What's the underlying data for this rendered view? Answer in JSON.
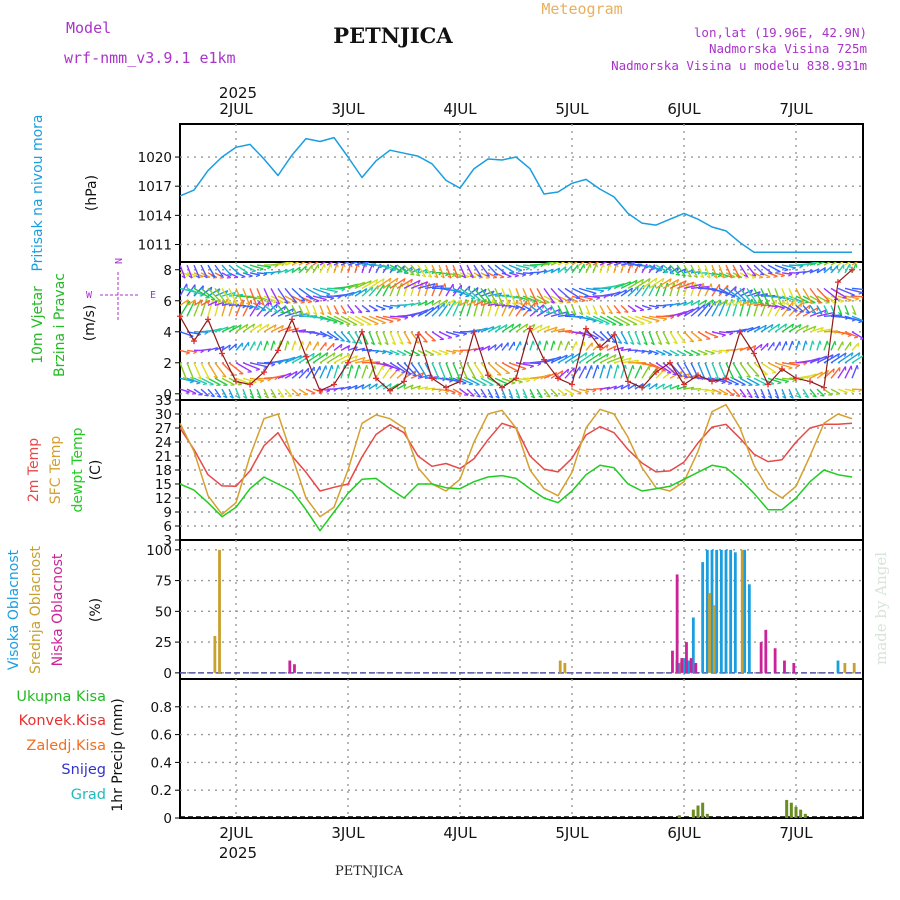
{
  "header": {
    "model_label": "Model",
    "model_name": "wrf-nmm_v3.9.1 e1km",
    "station": "PETNJICA",
    "product": "Meteogram",
    "coords": "lon,lat (19.96E, 42.9N)",
    "elevation": "Nadmorska Visina 725m",
    "model_elevation": "Nadmorska Visina u modelu 838.931m",
    "watermark": "made by Angel",
    "footer_station": "PETNJICA"
  },
  "time_axis": {
    "year_label": "2025",
    "day_labels": [
      "2JUL",
      "3JUL",
      "4JUL",
      "5JUL",
      "6JUL",
      "7JUL"
    ],
    "start": "2025-07-01T12:00",
    "end": "2025-07-07T12:00"
  },
  "colors": {
    "pressure": "#1a9ee0",
    "wind_axis": "#22bb22",
    "wind_arrow_labels": "#aa33cc",
    "temp_2m": "#e84848",
    "temp_sfc": "#d4a030",
    "temp_dew": "#22cc22",
    "cloud_high": "#1a9ee0",
    "cloud_mid": "#c8a030",
    "cloud_low": "#cc2299",
    "precip_total": "#22bb22",
    "precip_conv": "#e83030",
    "precip_frz": "#f07020",
    "precip_snow": "#3333cc",
    "precip_hail": "#22bbbb",
    "header_model": "#aa33cc",
    "header_product": "#e8b060"
  },
  "chart_data": [
    {
      "type": "line",
      "panel": "pressure",
      "ylabel_lines": [
        "Pritisak na nivou mora"
      ],
      "unit": "(hPa)",
      "ylim": [
        1009.2,
        1023.4
      ],
      "yticks": [
        1011,
        1014,
        1017,
        1020
      ],
      "series": [
        {
          "x_hours": [
            0,
            3,
            6,
            9,
            12,
            15,
            18,
            21,
            24,
            27,
            30,
            33,
            36,
            39,
            42,
            45,
            48,
            51,
            54,
            57,
            60,
            63,
            66,
            69,
            72,
            75,
            78,
            81,
            84,
            87,
            90,
            93,
            96,
            99,
            102,
            105,
            108,
            111,
            114,
            117,
            120,
            123,
            126,
            129,
            132,
            135,
            138,
            141,
            144
          ],
          "values": [
            1016.0,
            1016.6,
            1018.6,
            1020.0,
            1021.0,
            1021.3,
            1019.8,
            1018.1,
            1020.2,
            1021.9,
            1021.6,
            1022.0,
            1020.0,
            1017.9,
            1019.6,
            1020.7,
            1020.4,
            1020.1,
            1019.3,
            1017.6,
            1016.8,
            1018.8,
            1019.8,
            1019.7,
            1020.0,
            1018.8,
            1016.2,
            1016.4,
            1017.3,
            1017.7,
            1016.7,
            1015.9,
            1014.2,
            1013.2,
            1013.0,
            1013.6,
            1014.2,
            1013.6,
            1012.8,
            1012.4,
            1011.2,
            1010.2,
            1010.2,
            1010.2,
            1010.2,
            1010.2,
            1010.2,
            1010.2,
            1010.2
          ]
        }
      ]
    },
    {
      "type": "scatter",
      "panel": "wind",
      "ylabel_lines": [
        "10m Vjetar",
        "Brzina i Pravac"
      ],
      "unit": "(m/s)",
      "ylim": [
        -0.4,
        8.5
      ],
      "yticks": [
        0,
        2,
        4,
        6,
        8
      ],
      "direction_key": [
        "N",
        "W",
        "E"
      ],
      "series": [
        {
          "name": "speed",
          "x_hours": [
            0,
            3,
            6,
            9,
            12,
            15,
            18,
            21,
            24,
            27,
            30,
            33,
            36,
            39,
            42,
            45,
            48,
            51,
            54,
            57,
            60,
            63,
            66,
            69,
            72,
            75,
            78,
            81,
            84,
            87,
            90,
            93,
            96,
            99,
            102,
            105,
            108,
            111,
            114,
            117,
            120,
            123,
            126,
            129,
            132,
            135,
            138,
            141,
            144
          ],
          "values": [
            5.0,
            3.4,
            4.8,
            2.6,
            0.8,
            0.6,
            1.4,
            2.8,
            4.8,
            2.4,
            0.2,
            0.6,
            2.0,
            4.0,
            1.0,
            0.2,
            0.8,
            3.8,
            1.0,
            0.4,
            0.8,
            4.0,
            1.2,
            0.4,
            1.0,
            4.2,
            2.2,
            1.0,
            0.6,
            4.2,
            3.0,
            3.8,
            0.8,
            0.4,
            1.4,
            2.0,
            0.6,
            1.2,
            0.8,
            1.0,
            4.0,
            2.6,
            0.6,
            1.6,
            1.0,
            0.8,
            0.4,
            7.2,
            8.0
          ]
        }
      ],
      "arrow_rows": [
        0.3,
        1.0,
        2.0,
        2.8,
        4.0,
        5.0,
        5.7,
        6.3,
        6.8,
        7.8,
        8.3
      ]
    },
    {
      "type": "line",
      "panel": "temperature",
      "ylabel_lines": [
        "2m Temp",
        "SFC Temp",
        "dewpt Temp"
      ],
      "unit": "(C)",
      "ylim": [
        3,
        33
      ],
      "yticks": [
        3,
        6,
        9,
        12,
        15,
        18,
        21,
        24,
        27,
        30,
        33
      ],
      "series": [
        {
          "name": "2m Temp",
          "x_hours": [
            0,
            3,
            6,
            9,
            12,
            15,
            18,
            21,
            24,
            27,
            30,
            33,
            36,
            39,
            42,
            45,
            48,
            51,
            54,
            57,
            60,
            63,
            66,
            69,
            72,
            75,
            78,
            81,
            84,
            87,
            90,
            93,
            96,
            99,
            102,
            105,
            108,
            111,
            114,
            117,
            120,
            123,
            126,
            129,
            132,
            135,
            138,
            141,
            144
          ],
          "values": [
            27.0,
            22.4,
            17.0,
            14.6,
            14.5,
            17.8,
            23.2,
            26.0,
            21.0,
            17.5,
            13.5,
            14.3,
            15.0,
            20.8,
            25.6,
            27.7,
            26.0,
            21.0,
            18.8,
            19.4,
            18.3,
            20.4,
            24.5,
            28.0,
            27.0,
            21.0,
            18.2,
            17.6,
            20.5,
            25.5,
            27.3,
            26.0,
            22.4,
            19.5,
            17.6,
            17.8,
            19.7,
            23.8,
            27.2,
            27.8,
            24.8,
            21.4,
            19.8,
            20.2,
            24.0,
            27.0,
            27.8,
            27.8,
            28.0
          ]
        },
        {
          "name": "SFC Temp",
          "x_hours": [
            0,
            3,
            6,
            9,
            12,
            15,
            18,
            21,
            24,
            27,
            30,
            33,
            36,
            39,
            42,
            45,
            48,
            51,
            54,
            57,
            60,
            63,
            66,
            69,
            72,
            75,
            78,
            81,
            84,
            87,
            90,
            93,
            96,
            99,
            102,
            105,
            108,
            111,
            114,
            117,
            120,
            123,
            126,
            129,
            132,
            135,
            138,
            141,
            144
          ],
          "values": [
            28.0,
            22.0,
            12.5,
            8.5,
            11.0,
            21.0,
            29.0,
            30.0,
            21.0,
            12.0,
            8.0,
            10.0,
            18.0,
            28.0,
            29.8,
            29.0,
            27.0,
            18.5,
            15.0,
            13.5,
            16.0,
            24.0,
            30.0,
            30.8,
            27.0,
            18.0,
            14.0,
            12.5,
            17.5,
            27.0,
            31.0,
            30.0,
            25.0,
            18.5,
            14.2,
            13.5,
            15.5,
            22.0,
            30.5,
            32.0,
            27.0,
            19.0,
            14.0,
            12.0,
            14.5,
            21.0,
            28.0,
            30.0,
            29.0
          ]
        },
        {
          "name": "dewpt Temp",
          "x_hours": [
            0,
            3,
            6,
            9,
            12,
            15,
            18,
            21,
            24,
            27,
            30,
            33,
            36,
            39,
            42,
            45,
            48,
            51,
            54,
            57,
            60,
            63,
            66,
            69,
            72,
            75,
            78,
            81,
            84,
            87,
            90,
            93,
            96,
            99,
            102,
            105,
            108,
            111,
            114,
            117,
            120,
            123,
            126,
            129,
            132,
            135,
            138,
            141,
            144
          ],
          "values": [
            15.0,
            13.7,
            11.0,
            8.0,
            10.0,
            14.0,
            16.5,
            15.0,
            13.5,
            9.5,
            5.0,
            9.0,
            13.0,
            16.0,
            16.2,
            14.0,
            12.0,
            15.0,
            15.0,
            14.2,
            14.0,
            15.5,
            16.5,
            16.8,
            16.2,
            14.0,
            12.0,
            11.0,
            13.5,
            17.0,
            19.0,
            18.5,
            15.0,
            13.5,
            14.0,
            14.5,
            16.0,
            17.5,
            19.0,
            18.5,
            16.0,
            13.0,
            9.5,
            9.5,
            12.0,
            15.5,
            18.0,
            17.0,
            16.5
          ]
        }
      ]
    },
    {
      "type": "bar",
      "panel": "cloud",
      "ylabel_lines": [
        "Visoka Oblacnost",
        "Srednja Oblacnost",
        "Niska Oblacnost"
      ],
      "unit": "(%)",
      "ylim": [
        -5,
        108
      ],
      "yticks": [
        0,
        25,
        50,
        75,
        100
      ],
      "series": [
        {
          "name": "Visoka Oblacnost",
          "x_hours": [
            107,
            108,
            109,
            110,
            112,
            113,
            114,
            115,
            116,
            117,
            118,
            119,
            121,
            122,
            141
          ],
          "values": [
            8,
            12,
            10,
            45,
            90,
            100,
            100,
            100,
            100,
            100,
            100,
            98,
            100,
            72,
            10
          ]
        },
        {
          "name": "Srednja Oblacnost",
          "x_hours": [
            7,
            8,
            81,
            82,
            106,
            107,
            113,
            114,
            120,
            142,
            144
          ],
          "values": [
            30,
            100,
            10,
            8,
            10,
            9,
            65,
            55,
            100,
            8,
            8
          ]
        },
        {
          "name": "Niska Oblacnost",
          "x_hours": [
            24,
            25,
            106,
            107,
            108,
            109,
            110,
            111,
            125,
            126,
            128,
            130,
            132
          ],
          "values": [
            10,
            7,
            18,
            80,
            12,
            25,
            12,
            8,
            25,
            35,
            20,
            10,
            8
          ]
        }
      ]
    },
    {
      "type": "bar",
      "panel": "precipitation",
      "ylabel_lines": [
        "1hr Precip (mm)"
      ],
      "unit": "(mm)",
      "legend": [
        "Ukupna Kisa",
        "Konvek.Kisa",
        "Zaledj.Kisa",
        "Snijeg",
        "Grad"
      ],
      "ylim": [
        0,
        1.0
      ],
      "yticks": [
        0,
        0.2,
        0.4,
        0.6,
        0.8
      ],
      "series": [
        {
          "name": "Ukupna Kisa",
          "x_hours": [
            107,
            110,
            111,
            112,
            113,
            130,
            131,
            132,
            133,
            134
          ],
          "values": [
            0.02,
            0.06,
            0.09,
            0.11,
            0.03,
            0.13,
            0.11,
            0.08,
            0.06,
            0.03
          ]
        }
      ]
    }
  ]
}
